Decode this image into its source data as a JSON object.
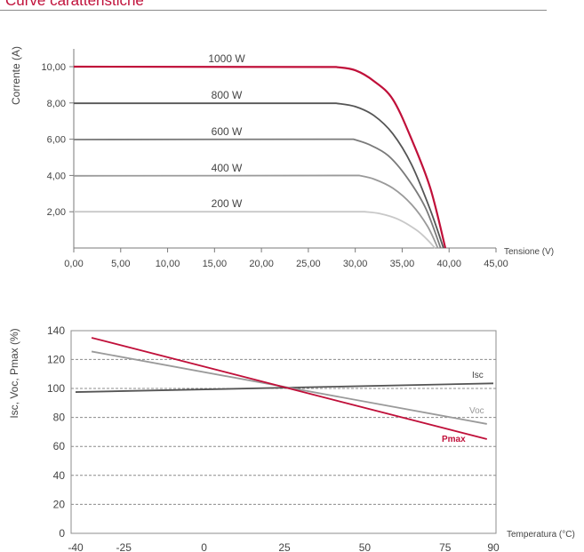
{
  "page": {
    "title": "Curve caratteristiche"
  },
  "colors": {
    "accent": "#c0103a",
    "dark": "#555555",
    "gray": "#9a9a9a",
    "light": "#c8c8c8",
    "grid": "#8c8c8c"
  },
  "chart_data": [
    {
      "type": "line",
      "xlabel": "Tensione (V)",
      "ylabel": "Corrente (A)",
      "xlim": [
        0,
        45
      ],
      "ylim": [
        0,
        11
      ],
      "x_ticks": [
        "0,00",
        "5,00",
        "10,00",
        "15,00",
        "20,00",
        "25,00",
        "30,00",
        "35,00",
        "40,00",
        "45,00"
      ],
      "y_ticks": [
        {
          "value": 2,
          "label": "2,00"
        },
        {
          "value": 4,
          "label": "4,00"
        },
        {
          "value": 6,
          "label": "6,00"
        },
        {
          "value": 8,
          "label": "8,00"
        },
        {
          "value": 10,
          "label": "10,00"
        }
      ],
      "grid": false,
      "series": [
        {
          "name": "1000 W",
          "color": "#c0103a",
          "points": [
            [
              0,
              10.0
            ],
            [
              28.0,
              9.98
            ],
            [
              30,
              9.8
            ],
            [
              32,
              9.2
            ],
            [
              34,
              8.2
            ],
            [
              36,
              6.0
            ],
            [
              38,
              3.3
            ],
            [
              39.6,
              0
            ]
          ]
        },
        {
          "name": "800 W",
          "color": "#555555",
          "points": [
            [
              0,
              7.98
            ],
            [
              28.0,
              7.98
            ],
            [
              30,
              7.8
            ],
            [
              32,
              7.3
            ],
            [
              34,
              6.3
            ],
            [
              36,
              4.6
            ],
            [
              38,
              2.1
            ],
            [
              39.4,
              0
            ]
          ]
        },
        {
          "name": "600 W",
          "color": "#7a7a7a",
          "points": [
            [
              0,
              5.98
            ],
            [
              29.8,
              6.0
            ],
            [
              31.5,
              5.7
            ],
            [
              33.5,
              5.1
            ],
            [
              35.5,
              3.9
            ],
            [
              37.5,
              2.2
            ],
            [
              39.1,
              0
            ]
          ]
        },
        {
          "name": "400 W",
          "color": "#9a9a9a",
          "points": [
            [
              0,
              3.98
            ],
            [
              30.4,
              4.0
            ],
            [
              32,
              3.8
            ],
            [
              34,
              3.3
            ],
            [
              36,
              2.4
            ],
            [
              37.7,
              1.2
            ],
            [
              38.8,
              0
            ]
          ]
        },
        {
          "name": "200 W",
          "color": "#c8c8c8",
          "points": [
            [
              0,
              2.0
            ],
            [
              31.0,
              2.0
            ],
            [
              32.6,
              1.9
            ],
            [
              34.5,
              1.6
            ],
            [
              36.5,
              1.0
            ],
            [
              37.6,
              0.5
            ],
            [
              38.5,
              0
            ]
          ]
        }
      ]
    },
    {
      "type": "line",
      "xlabel": "Temperatura (°C)",
      "ylabel": "Isc, Voc, Pmax (%)",
      "xlim": [
        -40,
        90
      ],
      "ylim": [
        0,
        140
      ],
      "x_ticks": [
        "-40",
        "-25",
        "0",
        "25",
        "50",
        "75",
        "90"
      ],
      "y_ticks": [
        "0",
        "20",
        "40",
        "60",
        "80",
        "100",
        "120",
        "140"
      ],
      "grid": true,
      "series": [
        {
          "name": "Isc",
          "color": "#555555",
          "points": [
            [
              -40,
              97.5
            ],
            [
              90,
              103.5
            ]
          ]
        },
        {
          "name": "Voc",
          "color": "#9a9a9a",
          "points": [
            [
              -35,
              125.5
            ],
            [
              88,
              75.5
            ]
          ]
        },
        {
          "name": "Pmax",
          "color": "#c0103a",
          "points": [
            [
              -35,
              135
            ],
            [
              88,
              65
            ]
          ]
        }
      ]
    }
  ]
}
